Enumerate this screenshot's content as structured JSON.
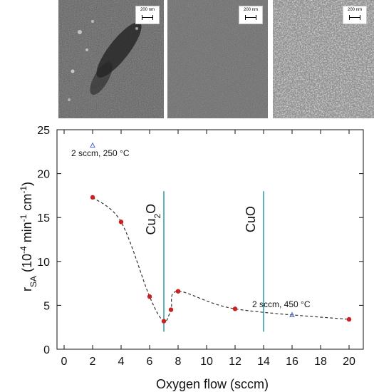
{
  "micrographs": [
    {
      "scale_label": "200 nm",
      "texture": "spotty"
    },
    {
      "scale_label": "200 nm",
      "texture": "fine"
    },
    {
      "scale_label": "200 nm",
      "texture": "grainy"
    }
  ],
  "chart_data": {
    "type": "scatter",
    "xlabel": "Oxygen flow (sccm)",
    "ylabel": "r_SA (10^-4 min^-1 cm^-1)",
    "xlim": [
      -0.5,
      21
    ],
    "ylim": [
      0,
      25
    ],
    "x_ticks": [
      0,
      2,
      4,
      6,
      8,
      10,
      12,
      14,
      16,
      18,
      20
    ],
    "y_ticks": [
      0,
      5,
      10,
      15,
      20,
      25
    ],
    "grid": false,
    "series": [
      {
        "marker": "circle",
        "color": "#cc2020",
        "connected": "dashed-smooth",
        "points": [
          {
            "x": 2,
            "y": 17.3
          },
          {
            "x": 4,
            "y": 14.5
          },
          {
            "x": 6,
            "y": 6.0
          },
          {
            "x": 7,
            "y": 3.2
          },
          {
            "x": 7.5,
            "y": 4.5
          },
          {
            "x": 8,
            "y": 6.6
          },
          {
            "x": 12,
            "y": 4.6
          },
          {
            "x": 20,
            "y": 3.4
          }
        ]
      },
      {
        "marker": "open-triangle",
        "color": "#3a5ad0",
        "points": [
          {
            "x": 2,
            "y": 23.2
          },
          {
            "x": 16,
            "y": 3.9
          }
        ]
      }
    ],
    "vertical_lines": [
      {
        "x": 7,
        "y_range": [
          2,
          18
        ],
        "color": "#2a9aa6",
        "label": "Cu2O"
      },
      {
        "x": 14,
        "y_range": [
          2,
          18
        ],
        "color": "#2a9aa6",
        "label": "CuO"
      }
    ],
    "annotations": [
      {
        "text": "2 sccm, 250 °C",
        "x": 0.5,
        "y": 22.0
      },
      {
        "text": "2 sccm, 450 °C",
        "x": 13.2,
        "y": 4.8
      }
    ]
  }
}
